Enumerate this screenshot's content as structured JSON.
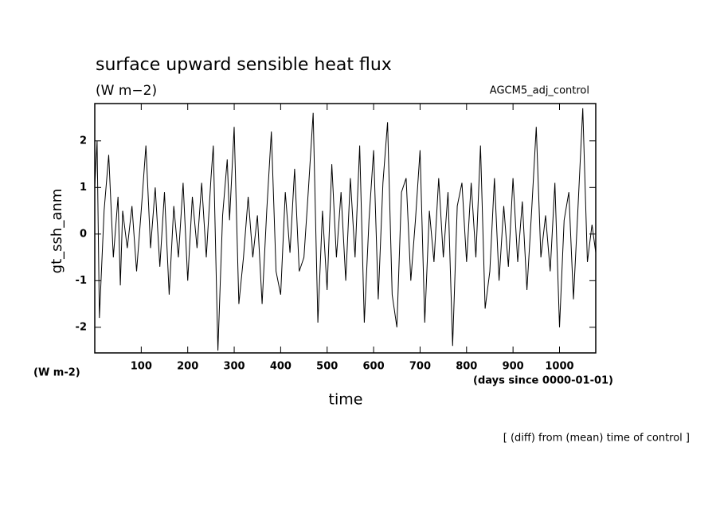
{
  "chart_data": {
    "type": "line",
    "title": "surface upward sensible heat flux",
    "subtitle": "(W m−2)",
    "annotation": "AGCM5_adj_control",
    "y_label": "gt_ssh_anm",
    "y_unit": "(W m-2)",
    "x_label": "time",
    "x_unit": "(days since 0000-01-01)",
    "footnote": "[ (diff) from (mean) time of control ]",
    "color": "#000000",
    "xlim": [
      0,
      1078
    ],
    "ylim": [
      -2.55,
      2.8
    ],
    "xticks": [
      100,
      200,
      300,
      400,
      500,
      600,
      700,
      800,
      900,
      1000
    ],
    "yticks": [
      -2,
      -1,
      0,
      1,
      2
    ],
    "x": [
      0,
      5,
      10,
      20,
      30,
      40,
      50,
      55,
      60,
      70,
      80,
      90,
      100,
      110,
      120,
      130,
      140,
      150,
      160,
      170,
      180,
      190,
      200,
      210,
      220,
      230,
      240,
      250,
      255,
      265,
      275,
      285,
      290,
      300,
      310,
      320,
      330,
      340,
      350,
      360,
      370,
      380,
      390,
      400,
      410,
      420,
      430,
      440,
      450,
      460,
      470,
      480,
      490,
      500,
      510,
      520,
      530,
      540,
      550,
      560,
      570,
      580,
      590,
      600,
      610,
      620,
      630,
      640,
      650,
      660,
      670,
      680,
      690,
      700,
      710,
      720,
      730,
      740,
      750,
      760,
      770,
      780,
      790,
      800,
      810,
      820,
      830,
      840,
      850,
      860,
      870,
      880,
      890,
      900,
      910,
      920,
      930,
      940,
      950,
      960,
      970,
      980,
      990,
      1000,
      1010,
      1020,
      1030,
      1040,
      1050,
      1060,
      1070,
      1078
    ],
    "values": [
      1.0,
      2.0,
      -1.8,
      0.5,
      1.7,
      -0.5,
      0.8,
      -1.1,
      0.5,
      -0.3,
      0.6,
      -0.8,
      0.5,
      1.9,
      -0.3,
      1.0,
      -0.7,
      0.9,
      -1.3,
      0.6,
      -0.5,
      1.1,
      -1.0,
      0.8,
      -0.3,
      1.1,
      -0.5,
      1.2,
      1.9,
      -2.5,
      0.4,
      1.6,
      0.3,
      2.3,
      -1.5,
      -0.5,
      0.8,
      -0.5,
      0.4,
      -1.5,
      0.5,
      2.2,
      -0.8,
      -1.3,
      0.9,
      -0.4,
      1.4,
      -0.8,
      -0.5,
      1.0,
      2.6,
      -1.9,
      0.5,
      -1.2,
      1.5,
      -0.5,
      0.9,
      -1.0,
      1.2,
      -0.5,
      1.9,
      -1.9,
      0.3,
      1.8,
      -1.4,
      1.1,
      2.4,
      -1.3,
      -2.0,
      0.9,
      1.2,
      -1.0,
      0.3,
      1.8,
      -1.9,
      0.5,
      -0.6,
      1.2,
      -0.5,
      0.9,
      -2.4,
      0.6,
      1.1,
      -0.6,
      1.1,
      -0.5,
      1.9,
      -1.6,
      -0.8,
      1.2,
      -1.0,
      0.6,
      -0.7,
      1.2,
      -0.6,
      0.7,
      -1.2,
      0.5,
      2.3,
      -0.5,
      0.4,
      -0.8,
      1.1,
      -2.0,
      0.3,
      0.9,
      -1.4,
      0.6,
      2.7,
      -0.6,
      0.2,
      -0.4
    ]
  }
}
